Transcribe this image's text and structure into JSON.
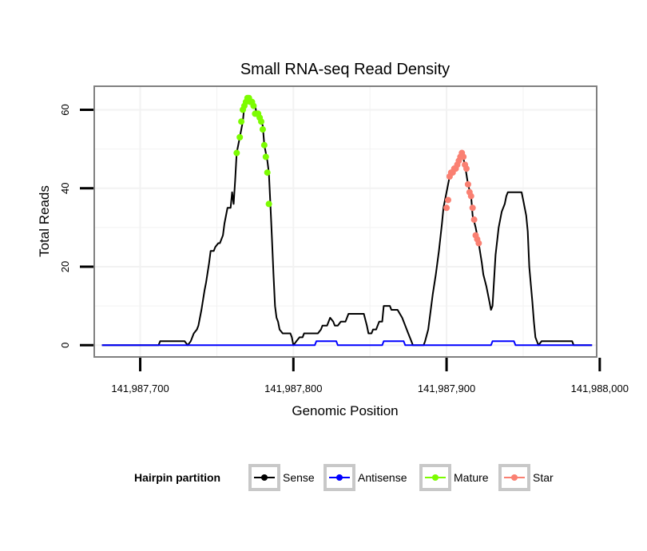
{
  "chart_data": {
    "type": "line",
    "title": "Small RNA-seq Read Density",
    "xlabel": "Genomic Position",
    "ylabel": "Total Reads",
    "xlim": [
      141987670,
      141987998
    ],
    "ylim": [
      -3,
      66
    ],
    "x_ticks": [
      {
        "value": 141987700,
        "label": "141,987,700"
      },
      {
        "value": 141987800,
        "label": "141,987,800"
      },
      {
        "value": 141987900,
        "label": "141,987,900"
      },
      {
        "value": 141988000,
        "label": "141,988,000"
      }
    ],
    "y_ticks": [
      {
        "value": 0,
        "label": "0"
      },
      {
        "value": 20,
        "label": "20"
      },
      {
        "value": 40,
        "label": "40"
      },
      {
        "value": 60,
        "label": "60"
      }
    ],
    "grid": true,
    "legend": {
      "title": "Hairpin partition",
      "position": "bottom",
      "entries": [
        {
          "name": "Sense",
          "color": "#000000"
        },
        {
          "name": "Antisense",
          "color": "#0000ff"
        },
        {
          "name": "Mature",
          "color": "#7cfc00"
        },
        {
          "name": "Star",
          "color": "#fa8072"
        }
      ]
    },
    "series": [
      {
        "name": "Sense",
        "color": "#000000",
        "style": "line",
        "points": [
          [
            141987675,
            0
          ],
          [
            141987712,
            0
          ],
          [
            141987713,
            1
          ],
          [
            141987729,
            1
          ],
          [
            141987731,
            0
          ],
          [
            141987733,
            1
          ],
          [
            141987735,
            3
          ],
          [
            141987737,
            4
          ],
          [
            141987738,
            5
          ],
          [
            141987740,
            9
          ],
          [
            141987742,
            14
          ],
          [
            141987743,
            16
          ],
          [
            141987745,
            21
          ],
          [
            141987746,
            24
          ],
          [
            141987748,
            24
          ],
          [
            141987749,
            25
          ],
          [
            141987751,
            26
          ],
          [
            141987752,
            26
          ],
          [
            141987754,
            28
          ],
          [
            141987755,
            31
          ],
          [
            141987757,
            35
          ],
          [
            141987759,
            35
          ],
          [
            141987760,
            39
          ],
          [
            141987761,
            36
          ],
          [
            141987762,
            42
          ],
          [
            141987763,
            49
          ],
          [
            141987765,
            53
          ],
          [
            141987767,
            57
          ],
          [
            141987768,
            61
          ],
          [
            141987770,
            63
          ],
          [
            141987772,
            62
          ],
          [
            141987773,
            62
          ],
          [
            141987775,
            61
          ],
          [
            141987776,
            59
          ],
          [
            141987778,
            58
          ],
          [
            141987780,
            56
          ],
          [
            141987781,
            51
          ],
          [
            141987783,
            47
          ],
          [
            141987784,
            44
          ],
          [
            141987785,
            36
          ],
          [
            141987786,
            27
          ],
          [
            141987787,
            18
          ],
          [
            141987788,
            10
          ],
          [
            141987789,
            7
          ],
          [
            141987790,
            6
          ],
          [
            141987791,
            4
          ],
          [
            141987793,
            3
          ],
          [
            141987798,
            3
          ],
          [
            141987799,
            2
          ],
          [
            141987800,
            0
          ],
          [
            141987802,
            1
          ],
          [
            141987804,
            2
          ],
          [
            141987806,
            2
          ],
          [
            141987807,
            3
          ],
          [
            141987816,
            3
          ],
          [
            141987818,
            4
          ],
          [
            141987819,
            5
          ],
          [
            141987822,
            5
          ],
          [
            141987824,
            7
          ],
          [
            141987826,
            6
          ],
          [
            141987827,
            5
          ],
          [
            141987829,
            5
          ],
          [
            141987831,
            6
          ],
          [
            141987834,
            6
          ],
          [
            141987836,
            8
          ],
          [
            141987846,
            8
          ],
          [
            141987848,
            5
          ],
          [
            141987849,
            3
          ],
          [
            141987851,
            3
          ],
          [
            141987852,
            4
          ],
          [
            141987854,
            4
          ],
          [
            141987856,
            6
          ],
          [
            141987858,
            6
          ],
          [
            141987859,
            10
          ],
          [
            141987863,
            10
          ],
          [
            141987864,
            9
          ],
          [
            141987868,
            9
          ],
          [
            141987871,
            7
          ],
          [
            141987873,
            5
          ],
          [
            141987875,
            3
          ],
          [
            141987877,
            1
          ],
          [
            141987878,
            0
          ],
          [
            141987885,
            0
          ],
          [
            141987886,
            1
          ],
          [
            141987888,
            4
          ],
          [
            141987890,
            10
          ],
          [
            141987891,
            13
          ],
          [
            141987893,
            18
          ],
          [
            141987895,
            24
          ],
          [
            141987897,
            31
          ],
          [
            141987898,
            35
          ],
          [
            141987899,
            37
          ],
          [
            141987901,
            41
          ],
          [
            141987902,
            43
          ],
          [
            141987904,
            44
          ],
          [
            141987906,
            45
          ],
          [
            141987907,
            46
          ],
          [
            141987909,
            47
          ],
          [
            141987910,
            49
          ],
          [
            141987912,
            46
          ],
          [
            141987914,
            41
          ],
          [
            141987916,
            38
          ],
          [
            141987917,
            33
          ],
          [
            141987919,
            30
          ],
          [
            141987921,
            26
          ],
          [
            141987923,
            21
          ],
          [
            141987924,
            18
          ],
          [
            141987926,
            15
          ],
          [
            141987928,
            11
          ],
          [
            141987929,
            9
          ],
          [
            141987930,
            10
          ],
          [
            141987932,
            23
          ],
          [
            141987934,
            30
          ],
          [
            141987936,
            34
          ],
          [
            141987938,
            36
          ],
          [
            141987939,
            38
          ],
          [
            141987940,
            39
          ],
          [
            141987949,
            39
          ],
          [
            141987950,
            37
          ],
          [
            141987952,
            33
          ],
          [
            141987953,
            29
          ],
          [
            141987954,
            20
          ],
          [
            141987956,
            11
          ],
          [
            141987957,
            6
          ],
          [
            141987958,
            2
          ],
          [
            141987959,
            1
          ],
          [
            141987960,
            0
          ],
          [
            141987962,
            1
          ],
          [
            141987982,
            1
          ],
          [
            141987983,
            0
          ],
          [
            141987995,
            0
          ]
        ]
      },
      {
        "name": "Antisense",
        "color": "#0000ff",
        "style": "line",
        "points": [
          [
            141987675,
            0
          ],
          [
            141987814,
            0
          ],
          [
            141987815,
            1
          ],
          [
            141987828,
            1
          ],
          [
            141987829,
            0
          ],
          [
            141987858,
            0
          ],
          [
            141987859,
            1
          ],
          [
            141987872,
            1
          ],
          [
            141987873,
            0
          ],
          [
            141987929,
            0
          ],
          [
            141987930,
            1
          ],
          [
            141987944,
            1
          ],
          [
            141987945,
            0
          ],
          [
            141987995,
            0
          ]
        ]
      },
      {
        "name": "Mature",
        "color": "#7cfc00",
        "style": "points",
        "points": [
          [
            141987763,
            49
          ],
          [
            141987765,
            53
          ],
          [
            141987766,
            57
          ],
          [
            141987767,
            60
          ],
          [
            141987768,
            61
          ],
          [
            141987769,
            62
          ],
          [
            141987770,
            63
          ],
          [
            141987771,
            63
          ],
          [
            141987772,
            62
          ],
          [
            141987773,
            62
          ],
          [
            141987774,
            61
          ],
          [
            141987775,
            59
          ],
          [
            141987776,
            59
          ],
          [
            141987777,
            59
          ],
          [
            141987778,
            58
          ],
          [
            141987779,
            57
          ],
          [
            141987780,
            55
          ],
          [
            141987781,
            51
          ],
          [
            141987782,
            48
          ],
          [
            141987783,
            44
          ],
          [
            141987784,
            36
          ]
        ]
      },
      {
        "name": "Star",
        "color": "#fa8072",
        "style": "points",
        "points": [
          [
            141987900,
            35
          ],
          [
            141987901,
            37
          ],
          [
            141987902,
            43
          ],
          [
            141987903,
            44
          ],
          [
            141987904,
            44
          ],
          [
            141987905,
            45
          ],
          [
            141987906,
            45
          ],
          [
            141987907,
            46
          ],
          [
            141987908,
            47
          ],
          [
            141987909,
            48
          ],
          [
            141987910,
            49
          ],
          [
            141987911,
            48
          ],
          [
            141987912,
            46
          ],
          [
            141987913,
            45
          ],
          [
            141987914,
            41
          ],
          [
            141987915,
            39
          ],
          [
            141987916,
            38
          ],
          [
            141987917,
            35
          ],
          [
            141987918,
            32
          ],
          [
            141987919,
            28
          ],
          [
            141987920,
            27
          ],
          [
            141987921,
            26
          ]
        ]
      }
    ]
  }
}
